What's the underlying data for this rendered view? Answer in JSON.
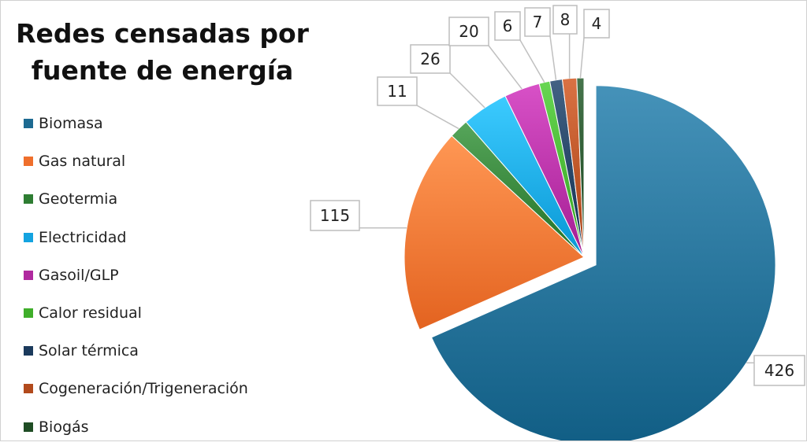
{
  "chart_data": {
    "type": "pie",
    "title_line1": "Redes censadas por",
    "title_line2": "fuente de energía",
    "legend_position": "left",
    "exploded_slice": "Biomasa",
    "slices": [
      {
        "label": "Biomasa",
        "value": 426,
        "color": "#1d6a91"
      },
      {
        "label": "Gas natural",
        "value": 115,
        "color": "#ef6f2c"
      },
      {
        "label": "Geotermia",
        "value": 11,
        "color": "#2e7d32"
      },
      {
        "label": "Electricidad",
        "value": 26,
        "color": "#14a3e0"
      },
      {
        "label": "Gasoil/GLP",
        "value": 20,
        "color": "#b0299f"
      },
      {
        "label": "Calor residual",
        "value": 6,
        "color": "#3fae2a"
      },
      {
        "label": "Solar térmica",
        "value": 7,
        "color": "#1b3a5c"
      },
      {
        "label": "Cogeneración/Trigeneración",
        "value": 8,
        "color": "#b24a1c"
      },
      {
        "label": "Biogás",
        "value": 4,
        "color": "#1f4d24"
      }
    ]
  }
}
